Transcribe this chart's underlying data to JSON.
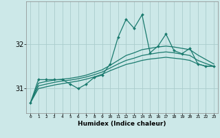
{
  "title": "",
  "xlabel": "Humidex (Indice chaleur)",
  "bg_color": "#cce8e8",
  "grid_color": "#aacccc",
  "line_color": "#1a7a6e",
  "x_values": [
    0,
    1,
    2,
    3,
    4,
    5,
    6,
    7,
    8,
    9,
    10,
    11,
    12,
    13,
    14,
    15,
    16,
    17,
    18,
    19,
    20,
    21,
    22,
    23
  ],
  "main_line": [
    30.68,
    31.2,
    31.2,
    31.2,
    31.2,
    31.1,
    31.0,
    31.1,
    31.25,
    31.3,
    31.55,
    32.15,
    32.55,
    32.35,
    32.65,
    31.8,
    31.95,
    32.22,
    31.85,
    31.78,
    31.9,
    31.55,
    31.5,
    31.5
  ],
  "smooth_lines": [
    [
      30.68,
      31.12,
      31.16,
      31.19,
      31.21,
      31.23,
      31.26,
      31.3,
      31.36,
      31.42,
      31.52,
      31.63,
      31.74,
      31.8,
      31.87,
      31.9,
      31.93,
      31.95,
      31.93,
      31.9,
      31.87,
      31.75,
      31.65,
      31.55
    ],
    [
      30.68,
      31.06,
      31.1,
      31.14,
      31.17,
      31.19,
      31.22,
      31.26,
      31.31,
      31.37,
      31.46,
      31.55,
      31.63,
      31.68,
      31.74,
      31.77,
      31.8,
      31.82,
      31.8,
      31.77,
      31.74,
      31.63,
      31.56,
      31.5
    ],
    [
      30.68,
      31.0,
      31.04,
      31.08,
      31.11,
      31.14,
      31.17,
      31.21,
      31.26,
      31.32,
      31.4,
      31.47,
      31.54,
      31.58,
      31.63,
      31.66,
      31.68,
      31.7,
      31.68,
      31.66,
      31.63,
      31.55,
      31.5,
      31.5
    ]
  ],
  "yticks": [
    31,
    32
  ],
  "ylim": [
    30.45,
    32.95
  ],
  "xlim": [
    -0.5,
    23.5
  ],
  "xtick_labels": [
    "0",
    "1",
    "2",
    "3",
    "4",
    "5",
    "6",
    "7",
    "8",
    "9",
    "10",
    "11",
    "12",
    "13",
    "14",
    "15",
    "16",
    "17",
    "18",
    "19",
    "20",
    "21",
    "22",
    "23"
  ]
}
